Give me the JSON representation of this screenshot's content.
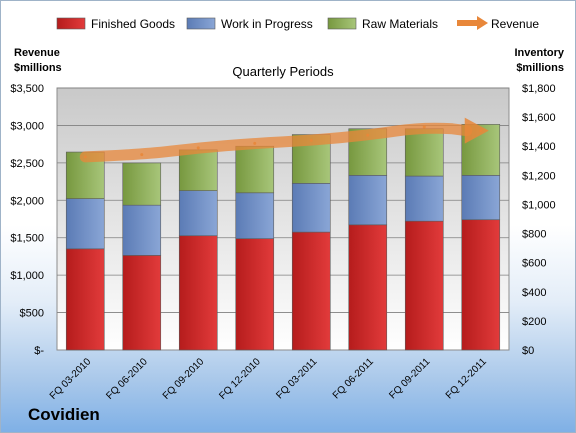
{
  "company": "Covidien",
  "chart_data": {
    "type": "bar",
    "stacked": true,
    "title": "Quarterly Periods",
    "ylabel_left": "Revenue\n$millions",
    "ylabel_right": "Inventory\n$millions",
    "ylim_left": [
      0,
      3500
    ],
    "ylim_right": [
      0,
      1800
    ],
    "yticks_left": [
      "$-",
      "$500",
      "$1,000",
      "$1,500",
      "$2,000",
      "$2,500",
      "$3,000",
      "$3,500"
    ],
    "yticks_right": [
      "$0",
      "$200",
      "$400",
      "$600",
      "$800",
      "$1,000",
      "$1,200",
      "$1,400",
      "$1,600",
      "$1,800"
    ],
    "categories": [
      "FQ 03-2010",
      "FQ 06-2010",
      "FQ 09-2010",
      "FQ 12-2010",
      "FQ 03-2011",
      "FQ 06-2011",
      "FQ 09-2011",
      "FQ 12-2011"
    ],
    "series": [
      {
        "name": "Finished Goods",
        "axis": "right",
        "color": "#d42b2b",
        "values": [
          695,
          650,
          785,
          765,
          810,
          860,
          885,
          895
        ]
      },
      {
        "name": "Work in Progress",
        "axis": "right",
        "color": "#6f8fc6",
        "values": [
          345,
          345,
          310,
          315,
          335,
          340,
          310,
          305
        ]
      },
      {
        "name": "Raw Materials",
        "axis": "right",
        "color": "#8fb15e",
        "values": [
          320,
          290,
          280,
          320,
          335,
          320,
          325,
          350
        ]
      },
      {
        "name": "Revenue",
        "axis": "left",
        "color": "#e8873a",
        "type": "arrow",
        "values": [
          2580,
          2610,
          2700,
          2760,
          2800,
          2870,
          2980,
          2930
        ]
      }
    ],
    "grid": true,
    "legend": "top"
  }
}
